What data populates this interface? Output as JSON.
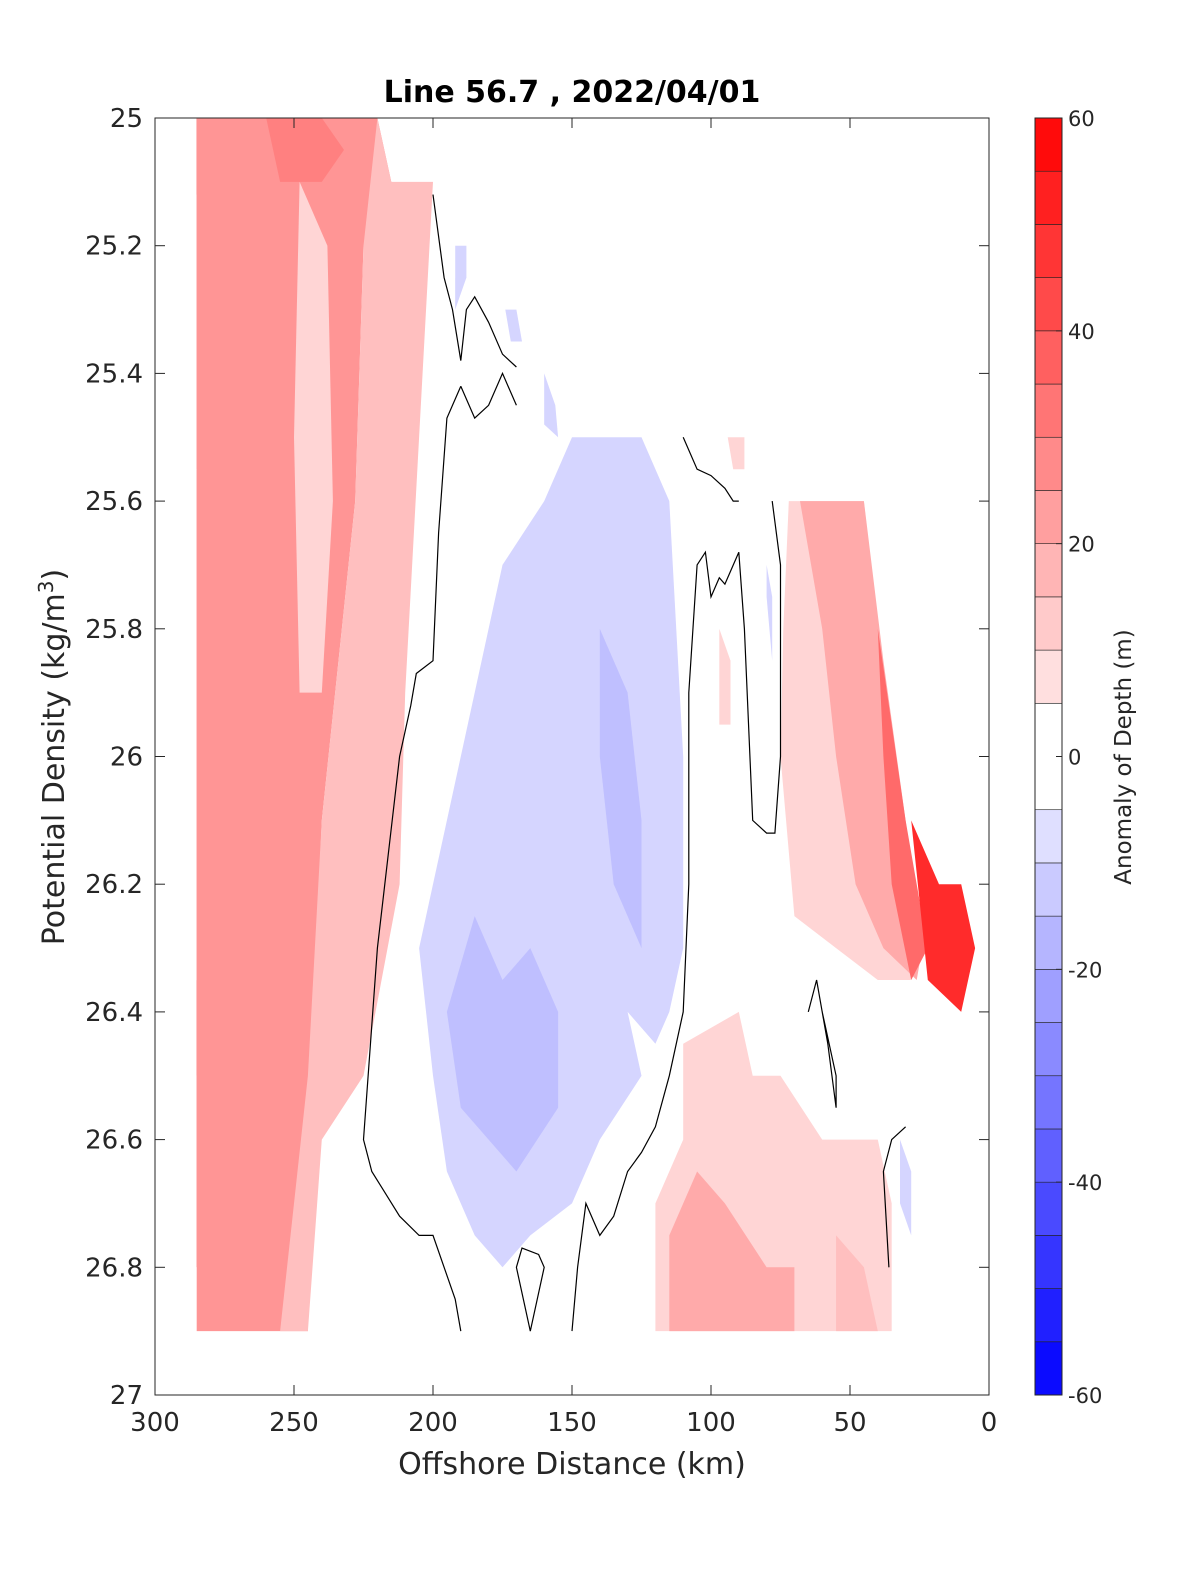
{
  "chart_data": {
    "type": "heatmap",
    "title": "Line 56.7 , 2022/04/01",
    "xlabel": "Offshore Distance (km)",
    "ylabel_main": "Potential Density (kg/m",
    "ylabel_sup": "3",
    "ylabel_close": ")",
    "colorbar_label": "Anomaly of Depth (m)",
    "xlim": [
      300,
      0
    ],
    "ylim": [
      25,
      27
    ],
    "x_reversed": true,
    "y_reversed": true,
    "x_ticks": [
      300,
      250,
      200,
      150,
      100,
      50,
      0
    ],
    "x_tick_labels": [
      "300",
      "250",
      "200",
      "150",
      "100",
      "50",
      "0"
    ],
    "y_ticks": [
      25,
      25.2,
      25.4,
      25.6,
      25.8,
      26,
      26.2,
      26.4,
      26.6,
      26.8,
      27
    ],
    "y_tick_labels": [
      "25",
      "25.2",
      "25.4",
      "25.6",
      "25.8",
      "26",
      "26.2",
      "26.4",
      "26.6",
      "26.8",
      "27"
    ],
    "colorbar_range": [
      -60,
      60
    ],
    "colorbar_ticks": [
      -60,
      -40,
      -20,
      0,
      20,
      40,
      60
    ],
    "colorbar_tick_labels": [
      "-60",
      "-40",
      "-20",
      "0",
      "20",
      "40",
      "60"
    ],
    "colorbar_levels": [
      -60,
      -55,
      -50,
      -45,
      -40,
      -35,
      -30,
      -25,
      -20,
      -15,
      -10,
      -5,
      5,
      10,
      15,
      20,
      25,
      30,
      35,
      40,
      45,
      50,
      55,
      60
    ],
    "colormap": {
      "negative": "#0000ff",
      "zero": "#ffffff",
      "positive": "#ff0000"
    },
    "zero_contour_color": "#000000",
    "regions": [
      {
        "value": 45,
        "points": [
          [
            285,
            25.0
          ],
          [
            268,
            25.0
          ],
          [
            262,
            25.05
          ],
          [
            270,
            25.1
          ],
          [
            285,
            25.12
          ]
        ]
      },
      {
        "value": 35,
        "points": [
          [
            285,
            25.0
          ],
          [
            255,
            25.0
          ],
          [
            250,
            25.1
          ],
          [
            262,
            25.3
          ],
          [
            272,
            25.5
          ],
          [
            285,
            25.55
          ]
        ]
      },
      {
        "value": 30,
        "points": [
          [
            285,
            25.55
          ],
          [
            272,
            25.55
          ],
          [
            268,
            25.8
          ],
          [
            270,
            26.2
          ],
          [
            274,
            26.45
          ],
          [
            285,
            26.5
          ]
        ]
      },
      {
        "value": 35,
        "points": [
          [
            285,
            26.35
          ],
          [
            272,
            26.4
          ],
          [
            266,
            26.55
          ],
          [
            268,
            26.75
          ],
          [
            285,
            26.8
          ]
        ]
      },
      {
        "value": 25,
        "points": [
          [
            255,
            25.0
          ],
          [
            220,
            25.0
          ],
          [
            215,
            25.1
          ],
          [
            225,
            25.2
          ],
          [
            228,
            25.6
          ],
          [
            240,
            26.1
          ],
          [
            245,
            26.6
          ],
          [
            245,
            26.9
          ],
          [
            285,
            26.9
          ],
          [
            285,
            25.0
          ]
        ]
      },
      {
        "value": 15,
        "points": [
          [
            220,
            25.0
          ],
          [
            215,
            25.1
          ],
          [
            200,
            25.1
          ],
          [
            205,
            25.5
          ],
          [
            210,
            25.9
          ],
          [
            212,
            26.2
          ],
          [
            225,
            26.5
          ],
          [
            240,
            26.6
          ],
          [
            245,
            26.9
          ],
          [
            255,
            26.9
          ],
          [
            245,
            26.5
          ],
          [
            240,
            26.1
          ],
          [
            228,
            25.6
          ],
          [
            225,
            25.2
          ]
        ]
      },
      {
        "value": 10,
        "points": [
          [
            248,
            25.1
          ],
          [
            238,
            25.2
          ],
          [
            236,
            25.6
          ],
          [
            240,
            25.9
          ],
          [
            248,
            25.9
          ],
          [
            250,
            25.5
          ]
        ]
      },
      {
        "value": 30,
        "points": [
          [
            260,
            25.0
          ],
          [
            240,
            25.0
          ],
          [
            232,
            25.05
          ],
          [
            240,
            25.1
          ],
          [
            255,
            25.1
          ]
        ]
      },
      {
        "value": -10,
        "points": [
          [
            150,
            25.5
          ],
          [
            125,
            25.5
          ],
          [
            115,
            25.6
          ],
          [
            110,
            26.0
          ],
          [
            110,
            26.3
          ],
          [
            115,
            26.4
          ],
          [
            120,
            26.45
          ],
          [
            130,
            26.4
          ],
          [
            125,
            26.5
          ],
          [
            140,
            26.6
          ],
          [
            150,
            26.7
          ],
          [
            165,
            26.75
          ],
          [
            175,
            26.8
          ],
          [
            185,
            26.75
          ],
          [
            195,
            26.65
          ],
          [
            200,
            26.5
          ],
          [
            205,
            26.3
          ],
          [
            195,
            26.1
          ],
          [
            185,
            25.9
          ],
          [
            175,
            25.7
          ],
          [
            160,
            25.6
          ]
        ]
      },
      {
        "value": -15,
        "points": [
          [
            185,
            26.25
          ],
          [
            175,
            26.35
          ],
          [
            165,
            26.3
          ],
          [
            155,
            26.4
          ],
          [
            155,
            26.55
          ],
          [
            170,
            26.65
          ],
          [
            180,
            26.6
          ],
          [
            190,
            26.55
          ],
          [
            195,
            26.4
          ]
        ]
      },
      {
        "value": -15,
        "points": [
          [
            140,
            25.8
          ],
          [
            130,
            25.9
          ],
          [
            125,
            26.1
          ],
          [
            125,
            26.3
          ],
          [
            135,
            26.2
          ],
          [
            140,
            26.0
          ]
        ]
      },
      {
        "value": -10,
        "points": [
          [
            160,
            25.4
          ],
          [
            156,
            25.45
          ],
          [
            155,
            25.5
          ],
          [
            160,
            25.48
          ]
        ]
      },
      {
        "value": -10,
        "points": [
          [
            192,
            25.2
          ],
          [
            188,
            25.2
          ],
          [
            188,
            25.25
          ],
          [
            192,
            25.3
          ]
        ]
      },
      {
        "value": -10,
        "points": [
          [
            174,
            25.3
          ],
          [
            170,
            25.3
          ],
          [
            168,
            25.35
          ],
          [
            172,
            25.35
          ]
        ]
      },
      {
        "value": 10,
        "points": [
          [
            72,
            25.6
          ],
          [
            45,
            25.6
          ],
          [
            40,
            25.8
          ],
          [
            32,
            26.1
          ],
          [
            25,
            26.3
          ],
          [
            28,
            26.35
          ],
          [
            40,
            26.35
          ],
          [
            55,
            26.3
          ],
          [
            70,
            26.25
          ],
          [
            75,
            26.0
          ],
          [
            74,
            25.8
          ]
        ]
      },
      {
        "value": 20,
        "points": [
          [
            68,
            25.6
          ],
          [
            45,
            25.6
          ],
          [
            38,
            25.85
          ],
          [
            30,
            26.1
          ],
          [
            24,
            26.3
          ],
          [
            26,
            26.35
          ],
          [
            38,
            26.3
          ],
          [
            48,
            26.2
          ],
          [
            55,
            26.0
          ],
          [
            60,
            25.8
          ]
        ]
      },
      {
        "value": 35,
        "points": [
          [
            40,
            25.8
          ],
          [
            30,
            26.1
          ],
          [
            22,
            26.3
          ],
          [
            28,
            26.35
          ],
          [
            35,
            26.2
          ],
          [
            38,
            26.0
          ]
        ]
      },
      {
        "value": 50,
        "points": [
          [
            28,
            26.1
          ],
          [
            18,
            26.2
          ],
          [
            10,
            26.2
          ],
          [
            5,
            26.3
          ],
          [
            10,
            26.4
          ],
          [
            22,
            26.35
          ]
        ]
      },
      {
        "value": 10,
        "points": [
          [
            110,
            26.45
          ],
          [
            90,
            26.4
          ],
          [
            85,
            26.5
          ],
          [
            75,
            26.5
          ],
          [
            60,
            26.6
          ],
          [
            40,
            26.6
          ],
          [
            35,
            26.7
          ],
          [
            35,
            26.9
          ],
          [
            120,
            26.9
          ],
          [
            120,
            26.7
          ],
          [
            110,
            26.6
          ]
        ]
      },
      {
        "value": 20,
        "points": [
          [
            105,
            26.65
          ],
          [
            95,
            26.7
          ],
          [
            80,
            26.8
          ],
          [
            70,
            26.8
          ],
          [
            70,
            26.9
          ],
          [
            115,
            26.9
          ],
          [
            115,
            26.75
          ]
        ]
      },
      {
        "value": 15,
        "points": [
          [
            55,
            26.75
          ],
          [
            45,
            26.8
          ],
          [
            40,
            26.9
          ],
          [
            55,
            26.9
          ]
        ]
      },
      {
        "value": 10,
        "points": [
          [
            94,
            25.5
          ],
          [
            88,
            25.5
          ],
          [
            88,
            25.55
          ],
          [
            92,
            25.55
          ]
        ]
      },
      {
        "value": 10,
        "points": [
          [
            97,
            25.8
          ],
          [
            93,
            25.85
          ],
          [
            93,
            25.95
          ],
          [
            97,
            25.95
          ]
        ]
      },
      {
        "value": -10,
        "points": [
          [
            32,
            26.6
          ],
          [
            28,
            26.65
          ],
          [
            28,
            26.75
          ],
          [
            32,
            26.7
          ]
        ]
      },
      {
        "value": -10,
        "points": [
          [
            80,
            25.7
          ],
          [
            78,
            25.75
          ],
          [
            78,
            25.85
          ],
          [
            80,
            25.75
          ]
        ]
      }
    ],
    "contours": [
      [
        [
          200,
          25.12
        ],
        [
          196,
          25.25
        ],
        [
          193,
          25.3
        ],
        [
          190,
          25.38
        ],
        [
          188,
          25.3
        ],
        [
          185,
          25.28
        ],
        [
          180,
          25.32
        ],
        [
          175,
          25.37
        ],
        [
          170,
          25.39
        ]
      ],
      [
        [
          190,
          25.42
        ],
        [
          195,
          25.47
        ],
        [
          198,
          25.65
        ],
        [
          200,
          25.85
        ],
        [
          206,
          25.87
        ],
        [
          208,
          25.92
        ],
        [
          212,
          26.0
        ],
        [
          220,
          26.3
        ],
        [
          225,
          26.6
        ],
        [
          222,
          26.65
        ],
        [
          212,
          26.72
        ],
        [
          205,
          26.75
        ],
        [
          200,
          26.75
        ],
        [
          192,
          26.85
        ],
        [
          190,
          26.9
        ]
      ],
      [
        [
          170,
          25.45
        ],
        [
          175,
          25.4
        ],
        [
          180,
          25.45
        ],
        [
          185,
          25.47
        ],
        [
          190,
          25.42
        ]
      ],
      [
        [
          165,
          26.9
        ],
        [
          160,
          26.8
        ],
        [
          162,
          26.78
        ],
        [
          168,
          26.77
        ],
        [
          170,
          26.8
        ],
        [
          165,
          26.9
        ]
      ],
      [
        [
          150,
          26.9
        ],
        [
          148,
          26.8
        ],
        [
          145,
          26.7
        ],
        [
          140,
          26.75
        ],
        [
          135,
          26.72
        ],
        [
          130,
          26.65
        ],
        [
          125,
          26.62
        ],
        [
          120,
          26.58
        ],
        [
          115,
          26.5
        ],
        [
          110,
          26.4
        ],
        [
          108,
          26.2
        ],
        [
          108,
          25.9
        ],
        [
          105,
          25.7
        ],
        [
          102,
          25.68
        ],
        [
          100,
          25.75
        ],
        [
          97,
          25.72
        ],
        [
          95,
          25.73
        ],
        [
          90,
          25.68
        ],
        [
          88,
          25.8
        ],
        [
          85,
          26.1
        ],
        [
          80,
          26.12
        ],
        [
          77,
          26.12
        ],
        [
          75,
          26.0
        ],
        [
          75,
          25.7
        ],
        [
          78,
          25.6
        ]
      ],
      [
        [
          110,
          25.5
        ],
        [
          105,
          25.55
        ],
        [
          100,
          25.56
        ],
        [
          95,
          25.58
        ],
        [
          92,
          25.6
        ],
        [
          90,
          25.6
        ]
      ],
      [
        [
          60,
          26.4
        ],
        [
          55,
          26.5
        ],
        [
          55,
          26.55
        ],
        [
          58,
          26.45
        ],
        [
          62,
          26.35
        ],
        [
          65,
          26.4
        ]
      ],
      [
        [
          30,
          26.58
        ],
        [
          35,
          26.6
        ],
        [
          38,
          26.65
        ],
        [
          36,
          26.8
        ]
      ]
    ]
  }
}
